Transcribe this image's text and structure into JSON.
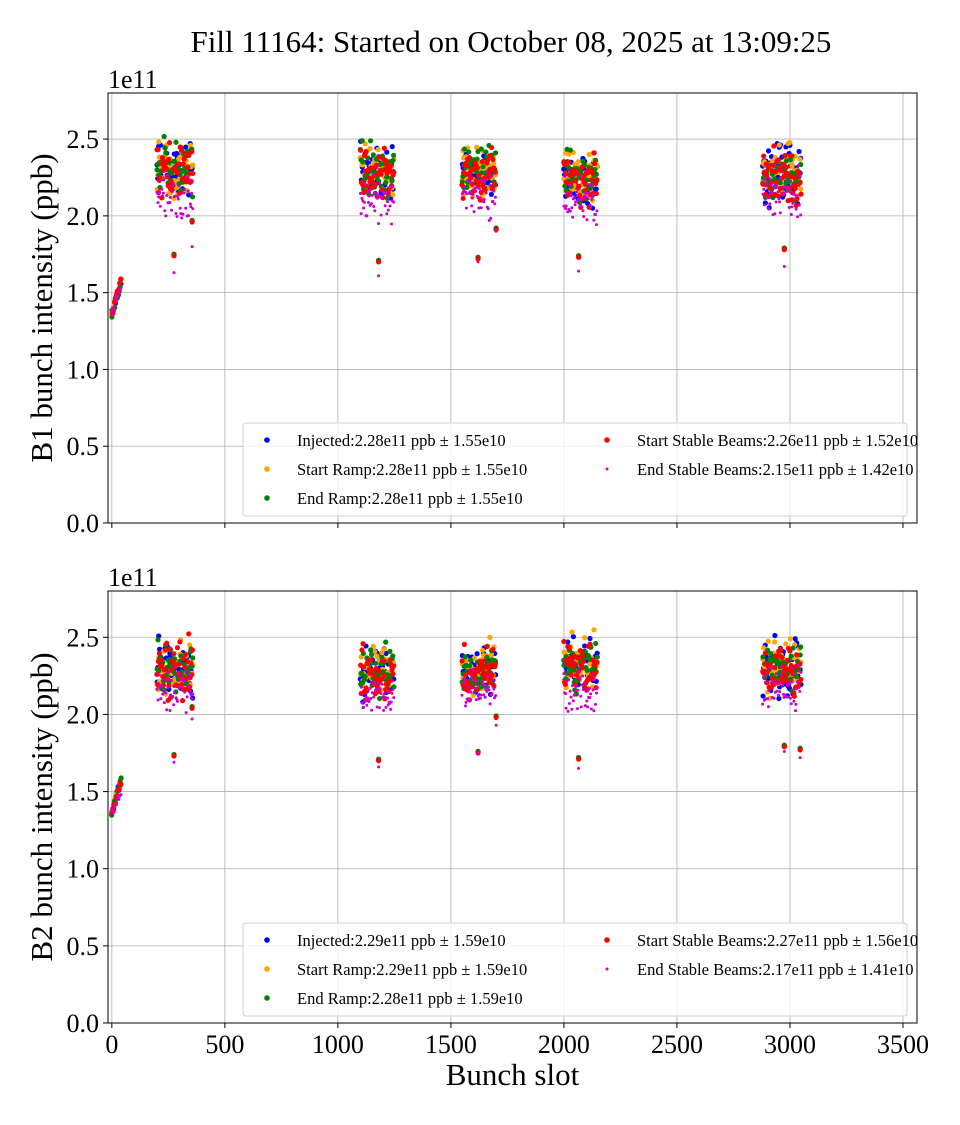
{
  "title": "Fill 11164: Started on October 08, 2025 at 13:09:25",
  "chart_data": [
    {
      "type": "scatter",
      "ylabel": "B1 bunch intensity (ppb)",
      "xlabel": "",
      "y_offset_label": "1e11",
      "xlim": [
        -17,
        3562
      ],
      "ylim": [
        0,
        2.8
      ],
      "y_scale": 100000000000.0,
      "xticks": [
        0,
        500,
        1000,
        1500,
        2000,
        2500,
        3000,
        3500
      ],
      "xtick_labels_shown": false,
      "yticks": [
        "0.0",
        "0.5",
        "1.0",
        "1.5",
        "2.0",
        "2.5"
      ],
      "grid": true,
      "legend_placement": "lower-right",
      "series": [
        {
          "name": "Injected:2.28e11 ppb ± 1.55e10",
          "color": "#0000ff"
        },
        {
          "name": "Start Ramp:2.28e11 ppb ± 1.55e10",
          "color": "#ffa500"
        },
        {
          "name": "End Ramp:2.28e11 ppb ± 1.55e10",
          "color": "#008000"
        },
        {
          "name": "Start Stable Beams:2.26e11 ppb ± 1.52e10",
          "color": "#ff0000"
        },
        {
          "name": "End Stable Beams:2.15e11 ppb ± 1.42e10",
          "color": "#cc00cc"
        }
      ],
      "clusters": [
        {
          "slots": [
            0,
            40
          ],
          "y_range": [
            1.36,
            1.57
          ],
          "end_y_range": [
            1.36,
            1.55
          ]
        },
        {
          "slots": [
            200,
            360
          ],
          "y_range": [
            2.05,
            2.57
          ],
          "end_y_range": [
            1.85,
            2.35
          ],
          "outliers": [
            [
              275,
              1.75,
              1.63
            ],
            [
              355,
              1.97,
              1.8
            ]
          ]
        },
        {
          "slots": [
            1100,
            1250
          ],
          "y_range": [
            2.05,
            2.53
          ],
          "end_y_range": [
            1.9,
            2.3
          ],
          "outliers": [
            [
              1180,
              1.71,
              1.61
            ]
          ]
        },
        {
          "slots": [
            1550,
            1700
          ],
          "y_range": [
            2.08,
            2.52
          ],
          "end_y_range": [
            1.95,
            2.35
          ],
          "outliers": [
            [
              1620,
              1.73,
              1.7
            ],
            [
              1700,
              1.92,
              1.9
            ]
          ]
        },
        {
          "slots": [
            2000,
            2150
          ],
          "y_range": [
            2.02,
            2.51
          ],
          "end_y_range": [
            1.86,
            2.3
          ],
          "outliers": [
            [
              2065,
              1.74,
              1.64
            ]
          ]
        },
        {
          "slots": [
            2880,
            3050
          ],
          "y_range": [
            2.0,
            2.53
          ],
          "end_y_range": [
            1.92,
            2.35
          ],
          "outliers": [
            [
              2975,
              1.79,
              1.67
            ]
          ]
        }
      ]
    },
    {
      "type": "scatter",
      "ylabel": "B2 bunch intensity (ppb)",
      "xlabel": "Bunch slot",
      "y_offset_label": "1e11",
      "xlim": [
        -17,
        3562
      ],
      "ylim": [
        0,
        2.8
      ],
      "y_scale": 100000000000.0,
      "xticks": [
        0,
        500,
        1000,
        1500,
        2000,
        2500,
        3000,
        3500
      ],
      "xtick_labels": [
        "0",
        "500",
        "1000",
        "1500",
        "2000",
        "2500",
        "3000",
        "3500"
      ],
      "yticks": [
        "0.0",
        "0.5",
        "1.0",
        "1.5",
        "2.0",
        "2.5"
      ],
      "grid": true,
      "legend_placement": "lower-right",
      "series": [
        {
          "name": "Injected:2.29e11 ppb ± 1.59e10",
          "color": "#0000ff"
        },
        {
          "name": "Start Ramp:2.29e11 ppb ± 1.59e10",
          "color": "#ffa500"
        },
        {
          "name": "End Ramp:2.28e11 ppb ± 1.59e10",
          "color": "#008000"
        },
        {
          "name": "Start Stable Beams:2.27e11 ppb ± 1.56e10",
          "color": "#ff0000"
        },
        {
          "name": "End Stable Beams:2.17e11 ppb ± 1.41e10",
          "color": "#cc00cc"
        }
      ],
      "clusters": [
        {
          "slots": [
            0,
            40
          ],
          "y_range": [
            1.36,
            1.57
          ],
          "end_y_range": [
            1.36,
            1.5
          ]
        },
        {
          "slots": [
            200,
            360
          ],
          "y_range": [
            2.05,
            2.56
          ],
          "end_y_range": [
            1.97,
            2.35
          ],
          "outliers": [
            [
              275,
              1.74,
              1.69
            ],
            [
              355,
              2.05,
              1.97
            ]
          ]
        },
        {
          "slots": [
            1100,
            1250
          ],
          "y_range": [
            2.05,
            2.52
          ],
          "end_y_range": [
            1.94,
            2.3
          ],
          "outliers": [
            [
              1180,
              1.71,
              1.66
            ]
          ]
        },
        {
          "slots": [
            1550,
            1700
          ],
          "y_range": [
            2.05,
            2.54
          ],
          "end_y_range": [
            1.95,
            2.35
          ],
          "outliers": [
            [
              1620,
              1.76,
              1.75
            ],
            [
              1700,
              1.99,
              1.93
            ]
          ]
        },
        {
          "slots": [
            2000,
            2150
          ],
          "y_range": [
            2.05,
            2.57
          ],
          "end_y_range": [
            1.9,
            2.35
          ],
          "outliers": [
            [
              2065,
              1.72,
              1.65
            ]
          ]
        },
        {
          "slots": [
            2880,
            3050
          ],
          "y_range": [
            2.05,
            2.56
          ],
          "end_y_range": [
            1.97,
            2.35
          ],
          "outliers": [
            [
              2975,
              1.8,
              1.76
            ],
            [
              3045,
              1.78,
              1.72
            ]
          ]
        }
      ]
    }
  ]
}
